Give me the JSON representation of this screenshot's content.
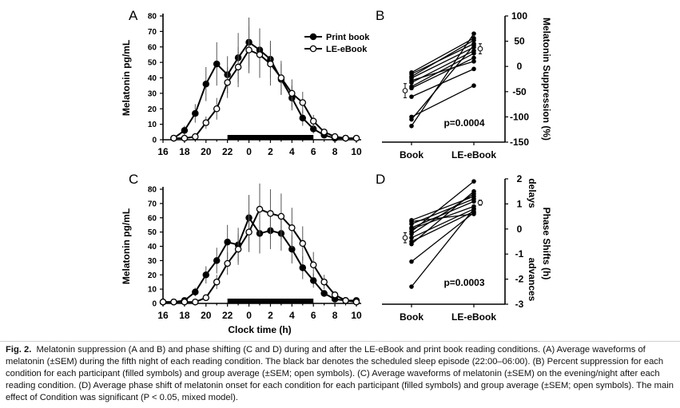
{
  "caption": {
    "label": "Fig. 2.",
    "text": "Melatonin suppression (A and B) and phase shifting (C and D) during and after the LE-eBook and print book reading conditions. (A) Average waveforms of melatonin (±SEM) during the fifth night of each reading condition. The black bar denotes the scheduled sleep episode (22:00–06:00). (B) Percent suppression for each condition for each participant (filled symbols) and group average (±SEM; open symbols). (C) Average waveforms of melatonin (±SEM) on the evening/night after each reading condition. (D) Average phase shift of melatonin onset for each condition for each participant (filled symbols) and group average (±SEM; open symbols). The main effect of Condition was significant (P < 0.05, mixed model)."
  },
  "chart_data": [
    {
      "panel": "A",
      "type": "line",
      "ylabel": "Melatonin pg/mL",
      "xlabel": "",
      "x_tick_labels": [
        "16",
        "18",
        "20",
        "22",
        "0",
        "2",
        "4",
        "6",
        "8",
        "10"
      ],
      "x_ticks": [
        16,
        18,
        20,
        22,
        24,
        26,
        28,
        30,
        32,
        34
      ],
      "ylim": [
        0,
        80
      ],
      "y_ticks": [
        0,
        10,
        20,
        30,
        40,
        50,
        60,
        70,
        80
      ],
      "sleep_bar": [
        22,
        30
      ],
      "legend": {
        "placement": "top-right",
        "entries": [
          "Print book",
          "LE-eBook"
        ]
      },
      "x": [
        17,
        18,
        19,
        20,
        21,
        22,
        23,
        24,
        25,
        26,
        27,
        28,
        29,
        30,
        31,
        32,
        33,
        34
      ],
      "series": [
        {
          "name": "Print book",
          "marker": "filled",
          "values": [
            1,
            6,
            17,
            36,
            49,
            42,
            53,
            63,
            58,
            52,
            39,
            27,
            14,
            7,
            3,
            1,
            1,
            null
          ],
          "errors": [
            1,
            3,
            6,
            11,
            14,
            12,
            16,
            16,
            14,
            12,
            10,
            8,
            5,
            3,
            2,
            1,
            1,
            null
          ]
        },
        {
          "name": "LE-eBook",
          "marker": "open",
          "values": [
            1,
            1,
            2,
            11,
            20,
            37,
            47,
            58,
            55,
            49,
            40,
            30,
            24,
            12,
            5,
            2,
            1,
            1
          ],
          "errors": [
            1,
            1,
            1,
            4,
            7,
            10,
            13,
            15,
            15,
            14,
            11,
            9,
            7,
            4,
            2,
            1,
            1,
            1
          ]
        }
      ]
    },
    {
      "panel": "B",
      "type": "line",
      "ylabel": "Melatonin Suppression (%)",
      "categories": [
        "Book",
        "LE-eBook"
      ],
      "ylim": [
        -150,
        100
      ],
      "y_ticks": [
        -150,
        -100,
        -50,
        0,
        50,
        100
      ],
      "annotation": "p=0.0004",
      "participants": [
        [
          -12,
          56
        ],
        [
          -15,
          45
        ],
        [
          -23,
          38
        ],
        [
          -32,
          31
        ],
        [
          -40,
          26
        ],
        [
          -43,
          17
        ],
        [
          -60,
          -5
        ],
        [
          -100,
          -38
        ],
        [
          -105,
          42
        ],
        [
          -118,
          65
        ],
        [
          -20,
          52
        ],
        [
          -28,
          10
        ]
      ],
      "group_mean": {
        "values": [
          -48,
          35
        ],
        "errors": [
          14,
          10
        ]
      }
    },
    {
      "panel": "C",
      "type": "line",
      "ylabel": "Melatonin pg/mL",
      "xlabel": "Clock time (h)",
      "x_tick_labels": [
        "16",
        "18",
        "20",
        "22",
        "0",
        "2",
        "4",
        "6",
        "8",
        "10"
      ],
      "x_ticks": [
        16,
        18,
        20,
        22,
        24,
        26,
        28,
        30,
        32,
        34
      ],
      "ylim": [
        0,
        80
      ],
      "y_ticks": [
        0,
        10,
        20,
        30,
        40,
        50,
        60,
        70,
        80
      ],
      "sleep_bar": [
        22,
        30
      ],
      "x": [
        16,
        17,
        18,
        19,
        20,
        21,
        22,
        23,
        24,
        25,
        26,
        27,
        28,
        29,
        30,
        31,
        32,
        33,
        34
      ],
      "series": [
        {
          "name": "Print book",
          "marker": "filled",
          "values": [
            1,
            1,
            2,
            8,
            20,
            30,
            43,
            41,
            60,
            49,
            51,
            49,
            38,
            25,
            16,
            7,
            3,
            2,
            2
          ],
          "errors": [
            1,
            1,
            1,
            3,
            6,
            9,
            12,
            12,
            16,
            14,
            13,
            12,
            10,
            8,
            5,
            2,
            1,
            1,
            1
          ]
        },
        {
          "name": "LE-eBook",
          "marker": "open",
          "values": [
            1,
            1,
            1,
            1,
            4,
            15,
            28,
            38,
            50,
            66,
            63,
            61,
            53,
            42,
            27,
            15,
            6,
            2,
            1
          ],
          "errors": [
            1,
            1,
            1,
            1,
            2,
            5,
            8,
            11,
            14,
            18,
            17,
            16,
            14,
            12,
            9,
            5,
            2,
            1,
            1
          ]
        }
      ]
    },
    {
      "panel": "D",
      "type": "line",
      "ylabel_right_top": "delays",
      "ylabel_right": "Phase Shifts (h)",
      "ylabel_right_bottom": "advances",
      "categories": [
        "Book",
        "LE-eBook"
      ],
      "ylim": [
        -3,
        2
      ],
      "y_ticks": [
        -3,
        -2,
        -1,
        0,
        1,
        2
      ],
      "annotation": "p=0.0003",
      "participants": [
        [
          0.35,
          1.3
        ],
        [
          0.2,
          1.2
        ],
        [
          0.05,
          1.1
        ],
        [
          0.0,
          0.9
        ],
        [
          -0.2,
          1.4
        ],
        [
          -0.35,
          0.8
        ],
        [
          -0.5,
          0.7
        ],
        [
          -0.6,
          1.5
        ],
        [
          -1.3,
          0.65
        ],
        [
          -2.3,
          0.8
        ],
        [
          0.3,
          0.6
        ],
        [
          -0.1,
          1.9
        ]
      ],
      "group_mean": {
        "values": [
          -0.35,
          1.05
        ],
        "errors": [
          0.2,
          0.1
        ]
      }
    }
  ]
}
